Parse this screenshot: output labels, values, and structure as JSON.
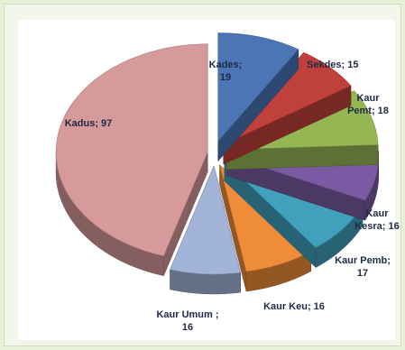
{
  "chart_data": {
    "type": "pie",
    "style": "3d-exploded",
    "title": "",
    "legend": "none",
    "slices": [
      {
        "name": "Kades",
        "value": 19,
        "color": "#4a76b6",
        "label_lines": [
          "Kades;",
          "19"
        ]
      },
      {
        "name": "Sekdes",
        "value": 15,
        "color": "#c0403b",
        "label_lines": [
          "Sekdes; 15"
        ]
      },
      {
        "name": "Kaur Pemt",
        "value": 18,
        "color": "#95b753",
        "label_lines": [
          "Kaur",
          "Pemt; 18"
        ]
      },
      {
        "name": "Kaur Kesra",
        "value": 16,
        "color": "#7a5aa2",
        "label_lines": [
          "Kaur",
          "Kesra; 16"
        ]
      },
      {
        "name": "Kaur Pemb",
        "value": 17,
        "color": "#41a0bc",
        "label_lines": [
          "Kaur Pemb;",
          "17"
        ]
      },
      {
        "name": "Kaur Keu",
        "value": 16,
        "color": "#ee8c3a",
        "label_lines": [
          "Kaur Keu; 16"
        ]
      },
      {
        "name": "Kaur Umum",
        "value": 16,
        "color": "#a2b4d8",
        "label_lines": [
          "Kaur Umum ;",
          "16"
        ]
      },
      {
        "name": "Kadus",
        "value": 97,
        "color": "#d69a9a",
        "label_lines": [
          "Kadus; 97"
        ]
      }
    ]
  }
}
